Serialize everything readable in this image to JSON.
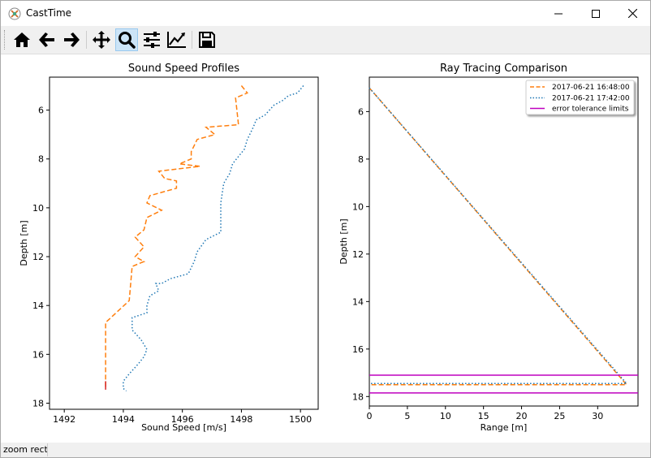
{
  "window": {
    "title": "CastTime"
  },
  "status": {
    "text": "zoom rect"
  },
  "toolbar": {
    "buttons": [
      "home-icon",
      "back-icon",
      "forward-icon",
      "pan-icon",
      "zoom-icon",
      "configure-subplots-icon",
      "edit-axis-icon",
      "save-icon"
    ],
    "active": "zoom-icon"
  },
  "chart_data": [
    {
      "type": "line",
      "title": "Sound Speed Profiles",
      "xlabel": "Sound Speed [m/s]",
      "ylabel": "Depth [m]",
      "xlim": [
        1491.5,
        1500.6
      ],
      "ylim": [
        18.25,
        4.65
      ],
      "xticks": [
        1492,
        1494,
        1496,
        1498,
        1500
      ],
      "yticks": [
        6,
        8,
        10,
        12,
        14,
        16,
        18
      ],
      "series": [
        {
          "color": "#ff7f0e",
          "style": "dashed",
          "points": [
            [
              1498.0,
              5.0
            ],
            [
              1498.2,
              5.3
            ],
            [
              1497.8,
              5.5
            ],
            [
              1497.9,
              6.6
            ],
            [
              1496.8,
              6.7
            ],
            [
              1497.1,
              7.0
            ],
            [
              1496.5,
              7.2
            ],
            [
              1496.3,
              7.7
            ],
            [
              1496.3,
              8.0
            ],
            [
              1495.9,
              8.2
            ],
            [
              1496.6,
              8.3
            ],
            [
              1495.2,
              8.5
            ],
            [
              1495.4,
              8.8
            ],
            [
              1495.8,
              8.9
            ],
            [
              1495.8,
              9.2
            ],
            [
              1494.9,
              9.5
            ],
            [
              1494.8,
              9.8
            ],
            [
              1495.3,
              10.1
            ],
            [
              1494.8,
              10.4
            ],
            [
              1494.7,
              10.9
            ],
            [
              1494.4,
              11.2
            ],
            [
              1494.7,
              11.6
            ],
            [
              1494.4,
              12.0
            ],
            [
              1494.7,
              12.2
            ],
            [
              1494.3,
              12.4
            ],
            [
              1494.2,
              13.8
            ],
            [
              1493.4,
              14.7
            ],
            [
              1493.4,
              17.4
            ]
          ]
        },
        {
          "color": "#1f77b4",
          "style": "dotted",
          "points": [
            [
              1500.1,
              5.0
            ],
            [
              1499.9,
              5.3
            ],
            [
              1499.6,
              5.4
            ],
            [
              1499.4,
              5.6
            ],
            [
              1499.1,
              5.8
            ],
            [
              1498.8,
              6.2
            ],
            [
              1498.5,
              6.4
            ],
            [
              1498.4,
              6.7
            ],
            [
              1498.2,
              7.2
            ],
            [
              1498.1,
              7.6
            ],
            [
              1497.9,
              7.9
            ],
            [
              1497.7,
              8.2
            ],
            [
              1497.6,
              8.6
            ],
            [
              1497.4,
              9.0
            ],
            [
              1497.3,
              9.8
            ],
            [
              1497.3,
              11.0
            ],
            [
              1496.8,
              11.3
            ],
            [
              1496.5,
              11.8
            ],
            [
              1496.4,
              12.2
            ],
            [
              1496.2,
              12.7
            ],
            [
              1495.6,
              12.9
            ],
            [
              1495.3,
              13.1
            ],
            [
              1495.1,
              13.1
            ],
            [
              1495.2,
              13.4
            ],
            [
              1494.9,
              13.6
            ],
            [
              1494.8,
              14.0
            ],
            [
              1494.8,
              14.3
            ],
            [
              1494.3,
              14.5
            ],
            [
              1494.3,
              15.0
            ],
            [
              1494.6,
              15.4
            ],
            [
              1494.8,
              15.8
            ],
            [
              1494.7,
              16.1
            ],
            [
              1494.5,
              16.4
            ],
            [
              1494.2,
              16.8
            ],
            [
              1494.0,
              17.1
            ],
            [
              1494.0,
              17.4
            ],
            [
              1494.1,
              17.5
            ]
          ]
        },
        {
          "color": "#d62728",
          "style": "solid",
          "points": [
            [
              1493.4,
              17.1
            ],
            [
              1493.4,
              17.45
            ]
          ]
        }
      ]
    },
    {
      "type": "line",
      "title": "Ray Tracing Comparison",
      "xlabel": "Range [m]",
      "ylabel": "Depth [m]",
      "xlim": [
        0,
        35.3
      ],
      "ylim": [
        18.4,
        4.55
      ],
      "xticks": [
        0,
        5,
        10,
        15,
        20,
        25,
        30
      ],
      "yticks": [
        6,
        8,
        10,
        12,
        14,
        16,
        18
      ],
      "legend": {
        "position": "top-right"
      },
      "series": [
        {
          "name": "2017-06-21 16:48:00",
          "color": "#ff7f0e",
          "style": "dashed",
          "points": [
            [
              0,
              5.0
            ],
            [
              33.8,
              17.5
            ],
            [
              0,
              17.5
            ]
          ]
        },
        {
          "name": "2017-06-21 17:42:00",
          "color": "#1f77b4",
          "style": "dotted",
          "points": [
            [
              0,
              5.0
            ],
            [
              33.8,
              17.45
            ],
            [
              0,
              17.45
            ]
          ]
        },
        {
          "name": "error tolerance limits",
          "color": "#bf00bf",
          "style": "solid",
          "lines": [
            17.1,
            17.85
          ]
        }
      ]
    }
  ]
}
